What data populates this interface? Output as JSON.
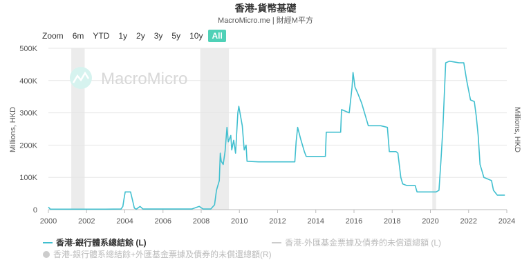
{
  "title": "香港-貨幣基礎",
  "subtitle": "MacroMicro.me | 財經M平方",
  "watermark": "MacroMicro",
  "zoom": {
    "label": "Zoom",
    "buttons": [
      "6m",
      "YTD",
      "1y",
      "2y",
      "3y",
      "5y",
      "10y",
      "All"
    ],
    "active": "All"
  },
  "colors": {
    "series_main": "#40bfcf",
    "series_disabled": "#cccccc",
    "recession_band": "#ececec",
    "grid": "#e6e6e6",
    "active_button": "#4fd1b7"
  },
  "chart_data": {
    "type": "line",
    "title": "香港-貨幣基礎",
    "xlabel": "",
    "ylabel": "Millions, HKD",
    "ylabel_right": "Millions, HKD",
    "xlim": [
      2000,
      2024
    ],
    "ylim": [
      0,
      500000
    ],
    "x_ticks": [
      "2000",
      "2002",
      "2004",
      "2006",
      "2008",
      "2010",
      "2012",
      "2014",
      "2016",
      "2018",
      "2020",
      "2022",
      "2024"
    ],
    "y_ticks": [
      "0",
      "100K",
      "200K",
      "300K",
      "400K",
      "500K"
    ],
    "grid": true,
    "legend_position": "bottom",
    "recession_bands": [
      [
        2001.2,
        2001.9
      ],
      [
        2007.95,
        2009.45
      ],
      [
        2020.1,
        2020.3
      ]
    ],
    "series": [
      {
        "name": "香港-銀行體系總結餘 (L)",
        "visible": true,
        "points": [
          [
            2000.0,
            8000
          ],
          [
            2000.1,
            1500
          ],
          [
            2001.0,
            1500
          ],
          [
            2002.0,
            1500
          ],
          [
            2003.0,
            1500
          ],
          [
            2003.8,
            2000
          ],
          [
            2003.9,
            10000
          ],
          [
            2003.95,
            30000
          ],
          [
            2004.02,
            55000
          ],
          [
            2004.3,
            55000
          ],
          [
            2004.4,
            30000
          ],
          [
            2004.5,
            5000
          ],
          [
            2004.6,
            1500
          ],
          [
            2004.8,
            10000
          ],
          [
            2004.95,
            2000
          ],
          [
            2005.5,
            2000
          ],
          [
            2006.5,
            2000
          ],
          [
            2007.5,
            2000
          ],
          [
            2007.9,
            10000
          ],
          [
            2008.1,
            2000
          ],
          [
            2008.5,
            2000
          ],
          [
            2008.7,
            15000
          ],
          [
            2008.8,
            60000
          ],
          [
            2008.95,
            90000
          ],
          [
            2009.0,
            175000
          ],
          [
            2009.05,
            150000
          ],
          [
            2009.15,
            140000
          ],
          [
            2009.25,
            180000
          ],
          [
            2009.35,
            255000
          ],
          [
            2009.42,
            210000
          ],
          [
            2009.55,
            230000
          ],
          [
            2009.6,
            185000
          ],
          [
            2009.7,
            215000
          ],
          [
            2009.8,
            175000
          ],
          [
            2009.92,
            300000
          ],
          [
            2009.97,
            320000
          ],
          [
            2010.15,
            260000
          ],
          [
            2010.25,
            185000
          ],
          [
            2010.35,
            200000
          ],
          [
            2010.4,
            150000
          ],
          [
            2011.0,
            148000
          ],
          [
            2012.0,
            148000
          ],
          [
            2012.9,
            148000
          ],
          [
            2012.97,
            210000
          ],
          [
            2013.05,
            255000
          ],
          [
            2013.2,
            220000
          ],
          [
            2013.4,
            180000
          ],
          [
            2013.5,
            165000
          ],
          [
            2014.0,
            165000
          ],
          [
            2014.5,
            165000
          ],
          [
            2014.55,
            240000
          ],
          [
            2015.3,
            240000
          ],
          [
            2015.35,
            310000
          ],
          [
            2015.75,
            300000
          ],
          [
            2015.9,
            380000
          ],
          [
            2015.95,
            425000
          ],
          [
            2016.05,
            380000
          ],
          [
            2016.2,
            360000
          ],
          [
            2016.4,
            330000
          ],
          [
            2016.6,
            290000
          ],
          [
            2016.75,
            260000
          ],
          [
            2017.0,
            260000
          ],
          [
            2017.4,
            260000
          ],
          [
            2017.75,
            255000
          ],
          [
            2017.85,
            180000
          ],
          [
            2018.2,
            180000
          ],
          [
            2018.3,
            175000
          ],
          [
            2018.45,
            100000
          ],
          [
            2018.55,
            80000
          ],
          [
            2018.75,
            75000
          ],
          [
            2019.0,
            75000
          ],
          [
            2019.2,
            75000
          ],
          [
            2019.3,
            55000
          ],
          [
            2019.6,
            55000
          ],
          [
            2019.9,
            55000
          ],
          [
            2020.3,
            55000
          ],
          [
            2020.45,
            60000
          ],
          [
            2020.55,
            150000
          ],
          [
            2020.65,
            250000
          ],
          [
            2020.8,
            455000
          ],
          [
            2021.0,
            460000
          ],
          [
            2021.5,
            455000
          ],
          [
            2021.75,
            455000
          ],
          [
            2021.9,
            400000
          ],
          [
            2022.1,
            340000
          ],
          [
            2022.3,
            335000
          ],
          [
            2022.4,
            290000
          ],
          [
            2022.5,
            230000
          ],
          [
            2022.6,
            140000
          ],
          [
            2022.7,
            120000
          ],
          [
            2022.8,
            100000
          ],
          [
            2023.0,
            95000
          ],
          [
            2023.2,
            90000
          ],
          [
            2023.3,
            60000
          ],
          [
            2023.5,
            45000
          ],
          [
            2023.75,
            45000
          ],
          [
            2023.9,
            45000
          ]
        ]
      },
      {
        "name": "香港-外匯基金票據及債券的未償還總額 (L)",
        "visible": false,
        "points": []
      },
      {
        "name": "香港-銀行體系總結餘+外匯基金票據及債券的未償還總額(R)",
        "visible": false,
        "points": []
      }
    ]
  }
}
